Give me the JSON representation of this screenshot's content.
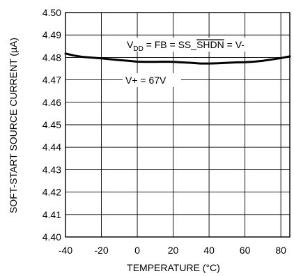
{
  "chart_data": {
    "type": "line",
    "title": "",
    "xlabel": "TEMPERATURE (°C)",
    "ylabel": "SOFT-START SOURCE CURRENT (µA)",
    "xlim": [
      -40,
      85
    ],
    "ylim": [
      4.4,
      4.5
    ],
    "x_ticks": [
      "-40",
      "-20",
      "0",
      "20",
      "40",
      "60",
      "80"
    ],
    "y_ticks": [
      "4.50",
      "4.49",
      "4.48",
      "4.47",
      "4.46",
      "4.45",
      "4.44",
      "4.43",
      "4.42",
      "4.41",
      "4.40"
    ],
    "grid": true,
    "series": [
      {
        "x": [
          -40,
          -35,
          -30,
          -25,
          -20,
          -15,
          -10,
          -5,
          0,
          5,
          10,
          15,
          20,
          25,
          30,
          35,
          40,
          45,
          50,
          55,
          60,
          65,
          70,
          75,
          80,
          85
        ],
        "y": [
          4.4817,
          4.4808,
          4.4802,
          4.4799,
          4.4796,
          4.4792,
          4.4788,
          4.4785,
          4.4781,
          4.478,
          4.478,
          4.4781,
          4.478,
          4.4778,
          4.4776,
          4.4773,
          4.4773,
          4.4774,
          4.4776,
          4.4778,
          4.4779,
          4.4781,
          4.4785,
          4.4791,
          4.4797,
          4.4805
        ]
      }
    ],
    "annotations": {
      "condition": {
        "v": "V",
        "dd": "DD",
        "mid": " = FB = SS_",
        "shdn": "SHDN",
        "tail": " = V-"
      },
      "vplus": "V+ = 67V"
    }
  }
}
